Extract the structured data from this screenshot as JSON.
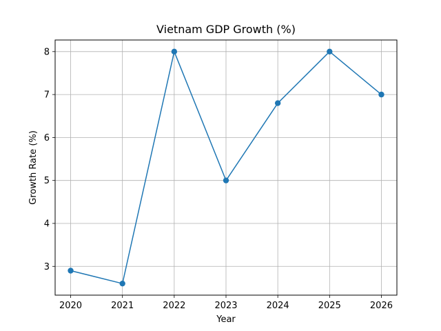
{
  "chart_data": {
    "type": "line",
    "title": "Vietnam GDP Growth (%)",
    "xlabel": "Year",
    "ylabel": "Growth Rate (%)",
    "x": [
      2020,
      2021,
      2022,
      2023,
      2024,
      2025,
      2026
    ],
    "series": [
      {
        "values": [
          2.9,
          2.6,
          8.0,
          5.0,
          6.8,
          8.0,
          7.0
        ],
        "color": "#1f77b4",
        "marker": "circle"
      }
    ],
    "xlim": [
      2019.7,
      2026.3
    ],
    "ylim": [
      2.33,
      8.27
    ],
    "xticks": [
      2020,
      2021,
      2022,
      2023,
      2024,
      2025,
      2026
    ],
    "yticks": [
      3,
      4,
      5,
      6,
      7,
      8
    ],
    "grid": true
  }
}
